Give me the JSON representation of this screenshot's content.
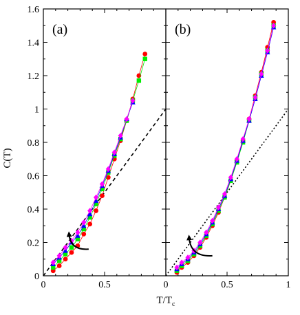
{
  "chart_data": [
    {
      "type": "scatter",
      "panel_label": "(a)",
      "ylabel": "C(T)",
      "xlim": [
        0,
        1
      ],
      "ylim": [
        0,
        1.6
      ],
      "xticks": [
        0,
        0.5
      ],
      "xticklabels": [
        "0",
        "0.5"
      ],
      "yticks": [
        0,
        0.2,
        0.4,
        0.6,
        0.8,
        1.0,
        1.2,
        1.4,
        1.6
      ],
      "yticklabels": [
        "0",
        "0.2",
        "0.4",
        "0.6",
        "0.8",
        "1",
        "1.2",
        "1.4",
        "1.6"
      ],
      "reference_line": {
        "style": "dashed",
        "x": [
          0,
          1
        ],
        "y": [
          0,
          1
        ]
      },
      "arrow": {
        "from": [
          0.37,
          0.16
        ],
        "to": [
          0.21,
          0.25
        ]
      },
      "series": [
        {
          "marker": "circle",
          "color": "#ff0000",
          "x": [
            0.08,
            0.13,
            0.18,
            0.23,
            0.28,
            0.33,
            0.38,
            0.43,
            0.48,
            0.53,
            0.58,
            0.63,
            0.68,
            0.73,
            0.78,
            0.83
          ],
          "y": [
            0.03,
            0.06,
            0.1,
            0.14,
            0.18,
            0.25,
            0.31,
            0.39,
            0.48,
            0.59,
            0.7,
            0.81,
            0.93,
            1.06,
            1.2,
            1.33
          ]
        },
        {
          "marker": "square",
          "color": "#00ee00",
          "x": [
            0.08,
            0.13,
            0.18,
            0.23,
            0.28,
            0.33,
            0.38,
            0.43,
            0.48,
            0.53,
            0.58,
            0.63,
            0.68,
            0.73,
            0.78,
            0.83
          ],
          "y": [
            0.05,
            0.09,
            0.13,
            0.17,
            0.22,
            0.28,
            0.35,
            0.43,
            0.52,
            0.62,
            0.72,
            0.82,
            0.93,
            1.05,
            1.17,
            1.3
          ]
        },
        {
          "marker": "triangle",
          "color": "#0000ff",
          "x": [
            0.08,
            0.13,
            0.18,
            0.23,
            0.28,
            0.33,
            0.38,
            0.43,
            0.48,
            0.53,
            0.58,
            0.63,
            0.68,
            0.73
          ],
          "y": [
            0.07,
            0.11,
            0.15,
            0.2,
            0.24,
            0.3,
            0.37,
            0.45,
            0.54,
            0.63,
            0.73,
            0.83,
            0.94,
            1.04
          ]
        },
        {
          "marker": "diamond",
          "color": "#ff00ff",
          "x": [
            0.08,
            0.13,
            0.18,
            0.23,
            0.28,
            0.33,
            0.38,
            0.43,
            0.48,
            0.53,
            0.58,
            0.63,
            0.68,
            0.73
          ],
          "y": [
            0.08,
            0.12,
            0.17,
            0.21,
            0.26,
            0.32,
            0.39,
            0.47,
            0.55,
            0.64,
            0.74,
            0.84,
            0.94,
            1.05
          ]
        }
      ]
    },
    {
      "type": "scatter",
      "panel_label": "(b)",
      "xlim": [
        0,
        1
      ],
      "ylim": [
        0,
        1.6
      ],
      "xticks": [
        0,
        0.5,
        1
      ],
      "xticklabels": [
        "0",
        "0.5",
        "1"
      ],
      "reference_line": {
        "style": "dotted",
        "x": [
          0,
          1
        ],
        "y": [
          0,
          1
        ]
      },
      "arrow": {
        "from": [
          0.38,
          0.12
        ],
        "to": [
          0.19,
          0.23
        ]
      },
      "series": [
        {
          "marker": "circle",
          "color": "#ff0000",
          "x": [
            0.09,
            0.13,
            0.18,
            0.23,
            0.28,
            0.33,
            0.38,
            0.43,
            0.48,
            0.53,
            0.58,
            0.63,
            0.68,
            0.73,
            0.78,
            0.83,
            0.88
          ],
          "y": [
            0.02,
            0.05,
            0.08,
            0.12,
            0.17,
            0.23,
            0.3,
            0.38,
            0.47,
            0.57,
            0.69,
            0.81,
            0.94,
            1.08,
            1.22,
            1.37,
            1.52
          ]
        },
        {
          "marker": "square",
          "color": "#00ee00",
          "x": [
            0.09,
            0.13,
            0.18,
            0.23,
            0.28,
            0.33,
            0.38,
            0.43,
            0.48,
            0.53,
            0.58,
            0.63,
            0.68,
            0.73,
            0.78,
            0.83,
            0.88
          ],
          "y": [
            0.03,
            0.06,
            0.09,
            0.13,
            0.18,
            0.24,
            0.31,
            0.39,
            0.47,
            0.57,
            0.68,
            0.8,
            0.93,
            1.07,
            1.21,
            1.35,
            1.5
          ]
        },
        {
          "marker": "triangle",
          "color": "#0000ff",
          "x": [
            0.09,
            0.13,
            0.18,
            0.23,
            0.28,
            0.33,
            0.38,
            0.43,
            0.48,
            0.53,
            0.58,
            0.63,
            0.68,
            0.73,
            0.78,
            0.83,
            0.88
          ],
          "y": [
            0.04,
            0.07,
            0.1,
            0.14,
            0.19,
            0.25,
            0.32,
            0.4,
            0.48,
            0.58,
            0.69,
            0.81,
            0.93,
            1.06,
            1.2,
            1.34,
            1.49
          ]
        },
        {
          "marker": "diamond",
          "color": "#ff00ff",
          "x": [
            0.09,
            0.13,
            0.18,
            0.23,
            0.28,
            0.33,
            0.38,
            0.43,
            0.48,
            0.53,
            0.58,
            0.63,
            0.68,
            0.73,
            0.78,
            0.83,
            0.88
          ],
          "y": [
            0.05,
            0.08,
            0.11,
            0.15,
            0.2,
            0.26,
            0.33,
            0.41,
            0.49,
            0.59,
            0.7,
            0.82,
            0.94,
            1.07,
            1.21,
            1.35,
            1.5
          ]
        }
      ]
    }
  ],
  "shared_xlabel": "T/T",
  "shared_xlabel_sub": "c"
}
